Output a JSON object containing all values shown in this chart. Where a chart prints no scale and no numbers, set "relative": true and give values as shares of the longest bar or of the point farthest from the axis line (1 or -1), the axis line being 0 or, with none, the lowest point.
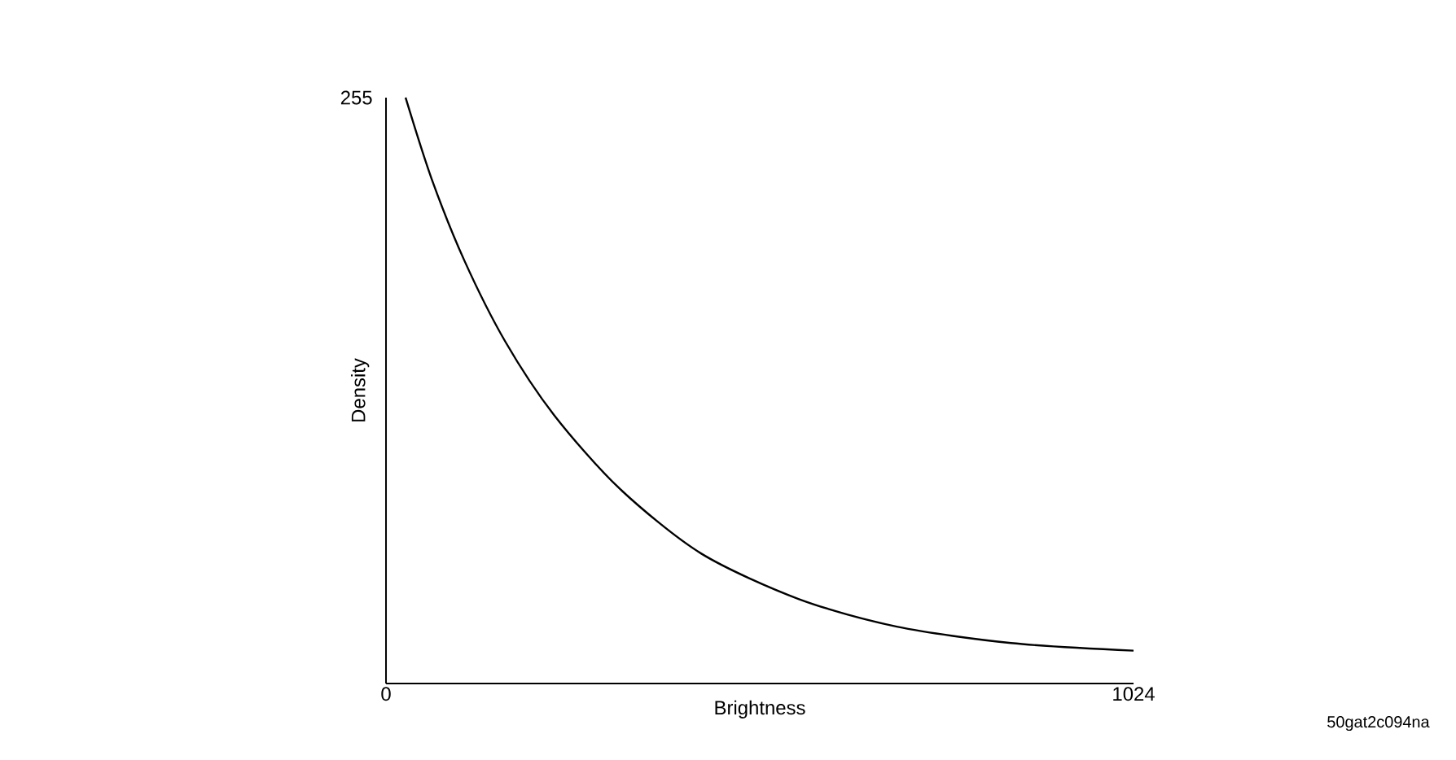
{
  "chart_data": {
    "type": "line",
    "xlabel": "Brightness",
    "ylabel": "Density",
    "relative": true,
    "x": [
      26.8,
      62.6,
      107.3,
      163.2,
      230.3,
      319.7,
      431.5,
      565.7,
      699.8,
      856.3,
      1024
    ],
    "series": [
      {
        "color": "#000000",
        "values": [
          1,
          0.861,
          0.722,
          0.584,
          0.458,
          0.333,
          0.222,
          0.144,
          0.097,
          0.069,
          0.056
        ]
      }
    ],
    "xlim": [
      0,
      1024
    ],
    "xticks": [
      0,
      1024
    ],
    "grid": false,
    "marker": "none",
    "line_style": "solid",
    "annotations": [
      "255",
      "50gat2c094na"
    ]
  }
}
